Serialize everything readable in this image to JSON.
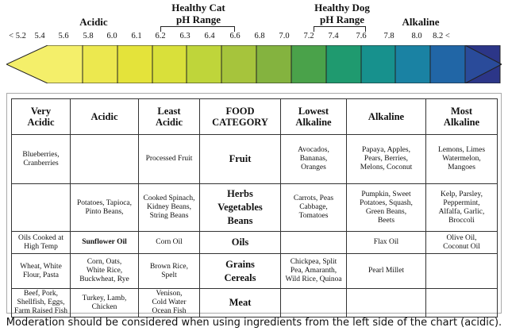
{
  "scale": {
    "acidic_label": "Acidic",
    "cat_label": [
      "Healthy Cat",
      "pH Range"
    ],
    "dog_label": [
      "Healthy Dog",
      "pH Range"
    ],
    "alkaline_label": "Alkaline",
    "ticks": [
      "< 5.2",
      "5.4",
      "5.6",
      "5.8",
      "6.0",
      "6.1",
      "6.2",
      "6.3",
      "6.4",
      "6.6",
      "6.8",
      "7.0",
      "7.2",
      "7.4",
      "7.6",
      "7.8",
      "8.0",
      "8.2 <"
    ],
    "segment_colors": [
      "#f4ef6a",
      "#ece84f",
      "#e4e33a",
      "#d9e03a",
      "#bfd53a",
      "#a6c43c",
      "#84b33f",
      "#4aa24a",
      "#1f9a6f",
      "#17918d",
      "#1a82a3",
      "#2166a6",
      "#2a4b9a",
      "#2c3688"
    ]
  },
  "table": {
    "headers": [
      [
        "Very",
        "Acidic"
      ],
      [
        "Acidic"
      ],
      [
        "Least",
        "Acidic"
      ],
      [
        "FOOD",
        "CATEGORY"
      ],
      [
        "Lowest",
        "Alkaline"
      ],
      [
        "Alkaline"
      ],
      [
        "Most",
        "Alkaline"
      ]
    ],
    "rows": [
      {
        "category": [
          "Fruit"
        ],
        "cells": [
          [
            "Blueberries,",
            "Cranberries"
          ],
          [],
          [
            "Processed Fruit"
          ],
          [
            "Avocados,",
            "Bananas,",
            "Oranges"
          ],
          [
            "Papaya, Apples,",
            "Pears, Berries,",
            "Melons, Coconut"
          ],
          [
            "Lemons, Limes",
            "Watermelon,",
            "Mangoes"
          ]
        ]
      },
      {
        "category": [
          "Herbs",
          "Vegetables",
          "Beans"
        ],
        "cells": [
          [],
          [
            "Potatoes, Tapioca,",
            "Pinto Beans,"
          ],
          [
            "Cooked Spinach,",
            "Kidney Beans,",
            "String Beans"
          ],
          [
            "Carrots, Peas",
            "Cabbage,",
            "Tomatoes"
          ],
          [
            "Pumpkin, Sweet",
            "Potatoes, Squash,",
            "Green Beans,",
            "Beets"
          ],
          [
            "Kelp, Parsley,",
            "Peppermint,",
            "Alfalfa, Garlic,",
            "Broccoli"
          ]
        ]
      },
      {
        "category": [
          "Oils"
        ],
        "cells": [
          [
            "Oils Cooked at",
            "High Temp"
          ],
          [
            "Sunflower Oil"
          ],
          [
            "Corn Oil"
          ],
          [],
          [
            "Flax Oil"
          ],
          [
            "Olive Oil,",
            "Coconut Oil"
          ]
        ]
      },
      {
        "category": [
          "Grains",
          "Cereals"
        ],
        "cells": [
          [
            "Wheat, White",
            "Flour, Pasta"
          ],
          [
            "Corn, Oats,",
            "White Rice,",
            "Buckwheat, Rye"
          ],
          [
            "Brown Rice,",
            "Spelt"
          ],
          [
            "Chickpea, Split",
            "Pea, Amaranth,",
            "Wild Rice, Quinoa"
          ],
          [
            "Pearl Millet"
          ],
          []
        ]
      },
      {
        "category": [
          "Meat"
        ],
        "cells": [
          [
            "Beef, Pork,",
            "Shellfish, Eggs,",
            "Farm Raised Fish"
          ],
          [
            "Turkey, Lamb,",
            "Chicken"
          ],
          [
            "Venison,",
            "Cold Water",
            "Ocean Fish"
          ],
          [],
          [],
          []
        ]
      }
    ]
  },
  "footer": "Moderation should be considered when using ingredients from the left side of the chart (acidic)."
}
